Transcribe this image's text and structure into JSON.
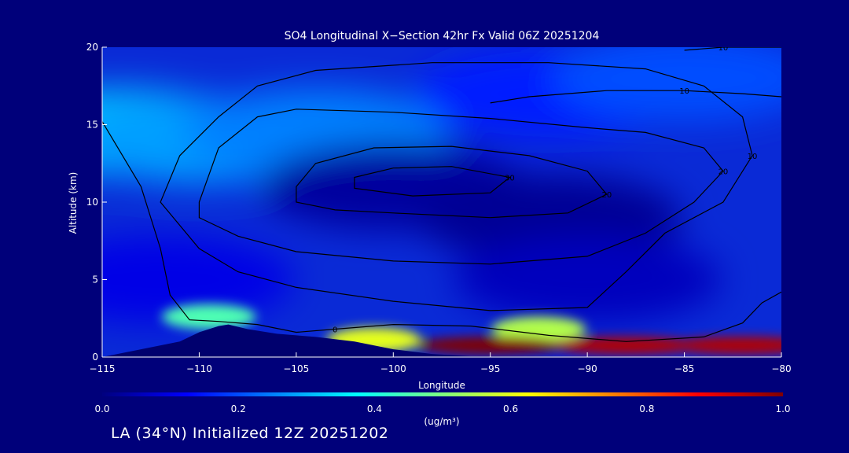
{
  "chart_data": {
    "type": "heatmap",
    "title": "SO4 Longitudinal X−Section 42hr  Fx Valid 06Z 20251204",
    "xlabel": "Longitude",
    "ylabel": "Altitude (km)",
    "xlim": [
      -115,
      -80
    ],
    "ylim": [
      0,
      20
    ],
    "x_ticks": [
      -115,
      -110,
      -105,
      -100,
      -95,
      -90,
      -85,
      -80
    ],
    "x_tick_labels": [
      "−115",
      "−110",
      "−105",
      "−100",
      "−95",
      "−90",
      "−85",
      "−80"
    ],
    "y_ticks": [
      0,
      5,
      10,
      15,
      20
    ],
    "y_tick_labels": [
      "0",
      "5",
      "10",
      "15",
      "20"
    ],
    "colorbar": {
      "min": 0.0,
      "max": 1.0,
      "ticks": [
        0.0,
        0.2,
        0.4,
        0.6,
        0.8,
        1.0
      ],
      "tick_labels": [
        "0.0",
        "0.2",
        "0.4",
        "0.6",
        "0.8",
        "1.0"
      ],
      "units": "(ug/m³)",
      "colormap": "jet"
    },
    "background_field": [
      {
        "x": -114,
        "y": 14.5,
        "value": 0.32
      },
      {
        "x": -110,
        "y": 14.0,
        "value": 0.28
      },
      {
        "x": -104,
        "y": 14.5,
        "value": 0.25
      },
      {
        "x": -92,
        "y": 17.0,
        "value": 0.15
      },
      {
        "x": -85,
        "y": 18.0,
        "value": 0.2
      },
      {
        "x": -100,
        "y": 11.0,
        "value": 0.03
      },
      {
        "x": -92,
        "y": 9.0,
        "value": 0.02
      },
      {
        "x": -90,
        "y": 5.0,
        "value": 0.06
      },
      {
        "x": -112,
        "y": 5.0,
        "value": 0.1
      }
    ],
    "plumes": [
      {
        "x": -109.5,
        "y": 2.6,
        "value": 0.45
      },
      {
        "x": -92.5,
        "y": 1.8,
        "value": 0.55
      },
      {
        "x": -101,
        "y": 1.1,
        "value": 0.6
      },
      {
        "x": -95,
        "y": 0.75,
        "value": 1.0
      },
      {
        "x": -88,
        "y": 0.75,
        "value": 0.95
      },
      {
        "x": -82,
        "y": 0.75,
        "value": 0.95
      }
    ],
    "terrain_profile": [
      [
        -115,
        0
      ],
      [
        -113,
        0.5
      ],
      [
        -111,
        1.0
      ],
      [
        -110,
        1.6
      ],
      [
        -109,
        2.0
      ],
      [
        -108.5,
        2.1
      ],
      [
        -107.5,
        1.8
      ],
      [
        -106,
        1.5
      ],
      [
        -105,
        1.4
      ],
      [
        -104,
        1.3
      ],
      [
        -102,
        1.0
      ],
      [
        -100,
        0.5
      ],
      [
        -98,
        0.2
      ],
      [
        -96,
        0.05
      ],
      [
        -80,
        0
      ]
    ],
    "contours": [
      {
        "label": "20",
        "points": [
          [
            -105,
            11
          ],
          [
            -104,
            12.5
          ],
          [
            -101,
            13.5
          ],
          [
            -97,
            13.6
          ],
          [
            -93,
            13
          ],
          [
            -90,
            12
          ],
          [
            -89,
            10.5
          ],
          [
            -91,
            9.3
          ],
          [
            -95,
            9.0
          ],
          [
            -100,
            9.3
          ],
          [
            -103,
            9.5
          ],
          [
            -105,
            10
          ]
        ]
      },
      {
        "label": "30",
        "points": [
          [
            -102,
            11.6
          ],
          [
            -100,
            12.2
          ],
          [
            -97,
            12.3
          ],
          [
            -94,
            11.6
          ],
          [
            -95,
            10.6
          ],
          [
            -99,
            10.4
          ],
          [
            -102,
            10.9
          ]
        ]
      },
      {
        "label": "20",
        "points": [
          [
            -110,
            10
          ],
          [
            -109,
            13.5
          ],
          [
            -107,
            15.5
          ],
          [
            -105,
            16
          ],
          [
            -100,
            15.8
          ],
          [
            -95,
            15.4
          ],
          [
            -90,
            14.8
          ],
          [
            -87,
            14.5
          ],
          [
            -84,
            13.5
          ],
          [
            -83,
            12
          ],
          [
            -84.5,
            10
          ],
          [
            -87,
            8
          ],
          [
            -90,
            6.5
          ],
          [
            -95,
            6
          ],
          [
            -100,
            6.2
          ],
          [
            -105,
            6.8
          ],
          [
            -108,
            7.8
          ],
          [
            -110,
            9
          ]
        ]
      },
      {
        "label": "10",
        "points": [
          [
            -112,
            10
          ],
          [
            -111,
            13
          ],
          [
            -109,
            15.5
          ],
          [
            -107,
            17.5
          ],
          [
            -104,
            18.5
          ],
          [
            -98,
            19
          ],
          [
            -92,
            19
          ],
          [
            -87,
            18.6
          ],
          [
            -84,
            17.5
          ],
          [
            -82,
            15.5
          ],
          [
            -81.5,
            13
          ],
          [
            -83,
            10
          ],
          [
            -86,
            8
          ],
          [
            -88,
            5.5
          ],
          [
            -90,
            3.2
          ],
          [
            -95,
            3
          ],
          [
            -100,
            3.6
          ],
          [
            -105,
            4.5
          ],
          [
            -108,
            5.5
          ],
          [
            -110,
            7
          ]
        ]
      },
      {
        "label": "0",
        "points": [
          [
            -115,
            15.2
          ],
          [
            -113,
            11
          ],
          [
            -112,
            7
          ],
          [
            -111.5,
            4
          ],
          [
            -110.5,
            2.4
          ],
          [
            -109,
            2.3
          ],
          [
            -107,
            2.1
          ],
          [
            -105,
            1.6
          ],
          [
            -103,
            1.8
          ],
          [
            -100,
            2.1
          ],
          [
            -96,
            2.0
          ],
          [
            -92,
            1.4
          ],
          [
            -88,
            1.0
          ],
          [
            -84,
            1.3
          ],
          [
            -82,
            2.2
          ],
          [
            -81,
            3.5
          ],
          [
            -80,
            4.2
          ]
        ]
      },
      {
        "label": "10",
        "points": [
          [
            -95,
            16.4
          ],
          [
            -93,
            16.8
          ],
          [
            -89,
            17.2
          ],
          [
            -85,
            17.2
          ],
          [
            -82,
            17.0
          ],
          [
            -80,
            16.8
          ]
        ]
      },
      {
        "label": "10",
        "points": [
          [
            -85,
            19.8
          ],
          [
            -83,
            20
          ],
          [
            -80,
            20
          ]
        ]
      }
    ]
  },
  "footer": "LA (34°N) Initialized 12Z 20251202"
}
